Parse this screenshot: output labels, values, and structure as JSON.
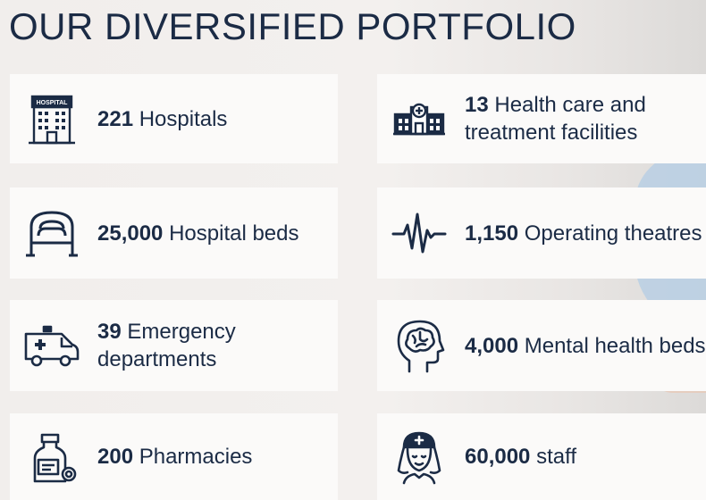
{
  "title": "OUR DIVERSIFIED PORTFOLIO",
  "stats": [
    {
      "value": "221",
      "label": "Hospitals",
      "icon": "hospital-building-icon",
      "sign_text": "HOSPITAL"
    },
    {
      "value": "13",
      "label": "Health care and treatment facilities",
      "icon": "health-facility-icon"
    },
    {
      "value": "25,000",
      "label": "Hospital beds",
      "icon": "hospital-bed-icon"
    },
    {
      "value": "1,150",
      "label": "Operating theatres",
      "icon": "heartbeat-pulse-icon"
    },
    {
      "value": "39",
      "label": "Emergency departments",
      "icon": "ambulance-icon"
    },
    {
      "value": "4,000",
      "label": "Mental health beds",
      "icon": "head-brain-icon"
    },
    {
      "value": "200",
      "label": "Pharmacies",
      "icon": "medicine-bottle-icon"
    },
    {
      "value": "60,000",
      "label": "staff",
      "icon": "nurse-icon"
    }
  ],
  "colors": {
    "text": "#1b2b45",
    "card": "#fbfaf9",
    "background": "#f1eeec"
  }
}
